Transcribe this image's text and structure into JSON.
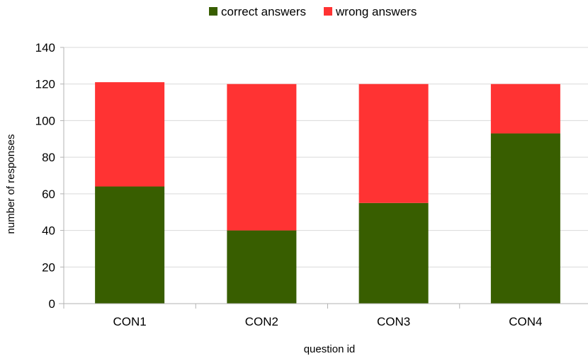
{
  "chart_data": {
    "type": "bar",
    "stacked": true,
    "title": "",
    "xlabel": "question id",
    "ylabel": "number of responses",
    "categories": [
      "CON1",
      "CON2",
      "CON3",
      "CON4"
    ],
    "series": [
      {
        "name": "correct answers",
        "color": "#385e00",
        "values": [
          64,
          40,
          55,
          93
        ]
      },
      {
        "name": "wrong answers",
        "color": "#ff3333",
        "values": [
          57,
          80,
          65,
          27
        ]
      }
    ],
    "ylim": [
      0,
      140
    ],
    "yticks": [
      0,
      20,
      40,
      60,
      80,
      100,
      120,
      140
    ],
    "grid": true,
    "legend_position": "top-center"
  }
}
